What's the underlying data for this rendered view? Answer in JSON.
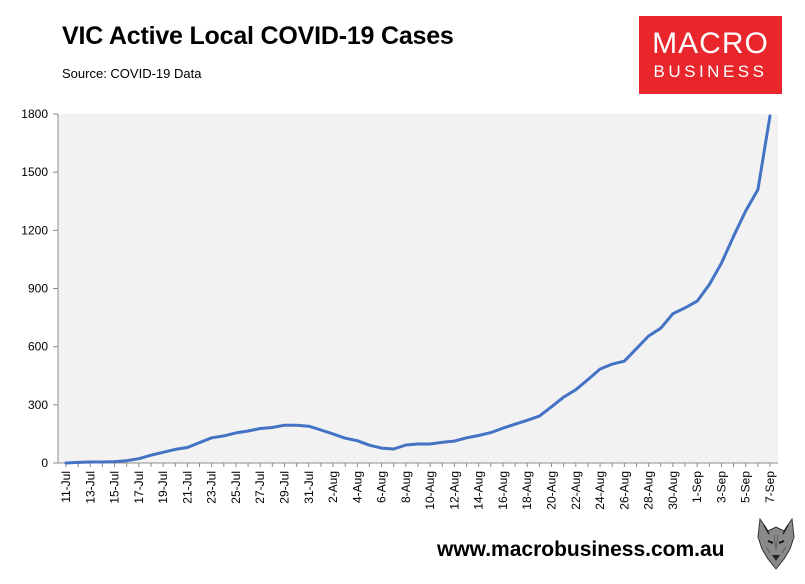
{
  "title": "VIC Active Local COVID-19 Cases",
  "subtitle": "Source: COVID-19 Data",
  "logo": {
    "line1": "MACRO",
    "line2": "BUSINESS",
    "color": "#e8262c"
  },
  "website": "www.macrobusiness.com.au",
  "mascot_icon": "wolf-head-icon",
  "colors": {
    "line": "#4472c4",
    "plot_bg": "#f2f2f2"
  },
  "chart_data": {
    "type": "line",
    "title": "VIC Active Local COVID-19 Cases",
    "subtitle": "Source: COVID-19 Data",
    "xlabel": "",
    "ylabel": "",
    "ylim": [
      0,
      1800
    ],
    "yticks": [
      "0",
      "300",
      "600",
      "900",
      "1200",
      "1500",
      "1800"
    ],
    "xtick_labels": [
      "11-Jul",
      "13-Jul",
      "15-Jul",
      "17-Jul",
      "19-Jul",
      "21-Jul",
      "23-Jul",
      "25-Jul",
      "27-Jul",
      "29-Jul",
      "31-Jul",
      "2-Aug",
      "4-Aug",
      "6-Aug",
      "8-Aug",
      "10-Aug",
      "12-Aug",
      "14-Aug",
      "16-Aug",
      "18-Aug",
      "20-Aug",
      "22-Aug",
      "24-Aug",
      "26-Aug",
      "28-Aug",
      "30-Aug",
      "1-Sep",
      "3-Sep",
      "5-Sep",
      "7-Sep"
    ],
    "grid": false,
    "legend": "none",
    "x": [
      "11-Jul",
      "12-Jul",
      "13-Jul",
      "14-Jul",
      "15-Jul",
      "16-Jul",
      "17-Jul",
      "18-Jul",
      "19-Jul",
      "20-Jul",
      "21-Jul",
      "22-Jul",
      "23-Jul",
      "24-Jul",
      "25-Jul",
      "26-Jul",
      "27-Jul",
      "28-Jul",
      "29-Jul",
      "30-Jul",
      "31-Jul",
      "1-Aug",
      "2-Aug",
      "3-Aug",
      "4-Aug",
      "5-Aug",
      "6-Aug",
      "7-Aug",
      "8-Aug",
      "9-Aug",
      "10-Aug",
      "11-Aug",
      "12-Aug",
      "13-Aug",
      "14-Aug",
      "15-Aug",
      "16-Aug",
      "17-Aug",
      "18-Aug",
      "19-Aug",
      "20-Aug",
      "21-Aug",
      "22-Aug",
      "23-Aug",
      "24-Aug",
      "25-Aug",
      "26-Aug",
      "27-Aug",
      "28-Aug",
      "29-Aug",
      "30-Aug",
      "31-Aug",
      "1-Sep",
      "2-Sep",
      "3-Sep",
      "4-Sep",
      "5-Sep",
      "6-Sep",
      "7-Sep"
    ],
    "series": [
      {
        "values": [
          0,
          3,
          5,
          5,
          7,
          12,
          22,
          40,
          55,
          70,
          80,
          105,
          130,
          140,
          155,
          165,
          178,
          183,
          195,
          195,
          190,
          170,
          150,
          128,
          115,
          92,
          77,
          72,
          93,
          98,
          98,
          107,
          113,
          130,
          142,
          157,
          180,
          200,
          220,
          242,
          290,
          340,
          378,
          430,
          485,
          510,
          525,
          590,
          655,
          695,
          770,
          800,
          835,
          920,
          1030,
          1170,
          1300,
          1410,
          1790
        ]
      }
    ]
  }
}
